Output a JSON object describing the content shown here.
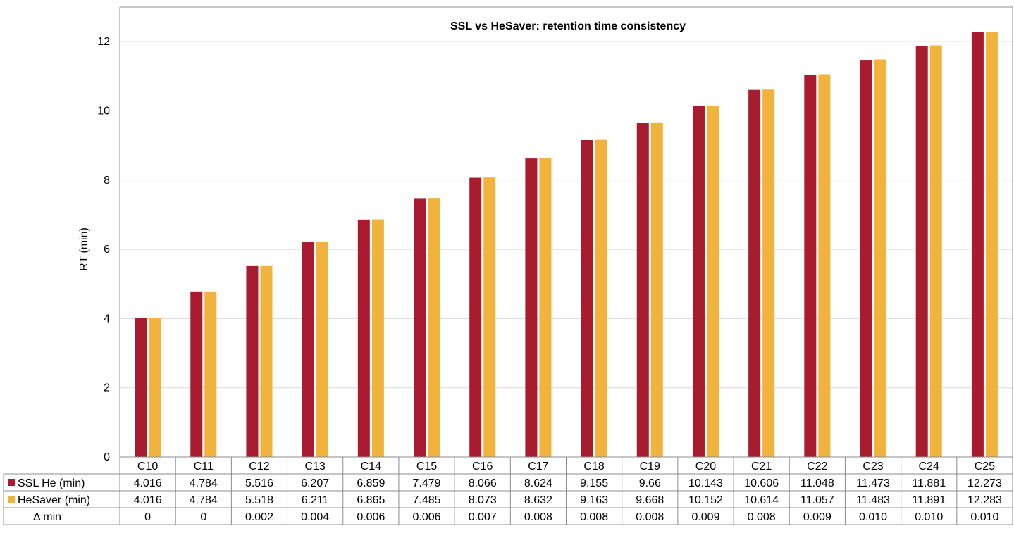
{
  "chart_data": {
    "type": "bar",
    "title": "SSL vs HeSaver: retention time consistency",
    "xlabel": "",
    "ylabel": "RT (min)",
    "ylim": [
      0,
      13
    ],
    "yticks": [
      0,
      2,
      4,
      6,
      8,
      10,
      12
    ],
    "grid": true,
    "legend": "data table rows",
    "categories": [
      "C10",
      "C11",
      "C12",
      "C13",
      "C14",
      "C15",
      "C16",
      "C17",
      "C18",
      "C19",
      "C20",
      "C21",
      "C22",
      "C23",
      "C24",
      "C25"
    ],
    "series": [
      {
        "name": "SSL He (min)",
        "color": "#a91c30",
        "values": [
          4.016,
          4.784,
          5.516,
          6.207,
          6.859,
          7.479,
          8.066,
          8.624,
          9.155,
          9.66,
          10.143,
          10.606,
          11.048,
          11.473,
          11.881,
          12.273
        ],
        "labels": [
          "4.016",
          "4.784",
          "5.516",
          "6.207",
          "6.859",
          "7.479",
          "8.066",
          "8.624",
          "9.155",
          "9.66",
          "10.143",
          "10.606",
          "11.048",
          "11.473",
          "11.881",
          "12.273"
        ]
      },
      {
        "name": "HeSaver (min)",
        "color": "#f2b33d",
        "values": [
          4.016,
          4.784,
          5.518,
          6.211,
          6.865,
          7.485,
          8.073,
          8.632,
          9.163,
          9.668,
          10.152,
          10.614,
          11.057,
          11.483,
          11.891,
          12.283
        ],
        "labels": [
          "4.016",
          "4.784",
          "5.518",
          "6.211",
          "6.865",
          "7.485",
          "8.073",
          "8.632",
          "9.163",
          "9.668",
          "10.152",
          "10.614",
          "11.057",
          "11.483",
          "11.891",
          "12.283"
        ]
      }
    ],
    "delta_row": {
      "name": "Δ min",
      "labels": [
        "0",
        "0",
        "0.002",
        "0.004",
        "0.006",
        "0.006",
        "0.007",
        "0.008",
        "0.008",
        "0.008",
        "0.009",
        "0.008",
        "0.009",
        "0.010",
        "0.010",
        "0.010"
      ]
    }
  }
}
